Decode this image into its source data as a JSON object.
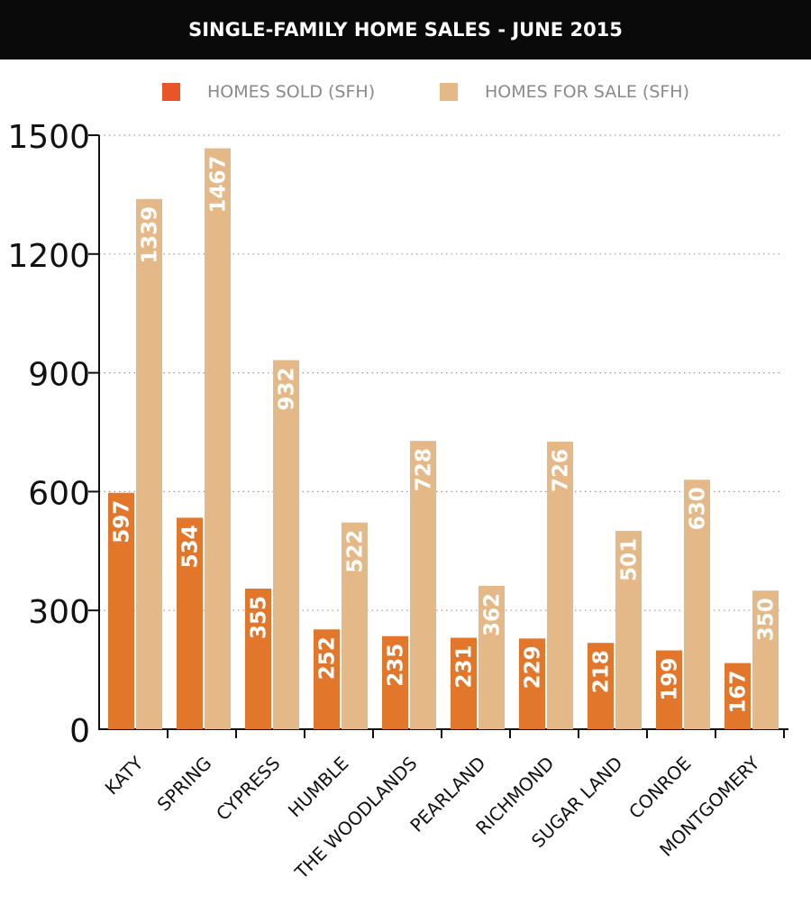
{
  "title": "SINGLE-FAMILY HOME SALES - JUNE 2015",
  "colors": {
    "sold": "#e2762a",
    "sold_legend": "#e8552b",
    "for_sale": "#e5b887",
    "title_bg": "#0a0a0a",
    "bar_label": "#ffffff"
  },
  "chart_data": {
    "type": "bar",
    "title": "SINGLE-FAMILY HOME SALES - JUNE 2015",
    "categories": [
      "KATY",
      "SPRING",
      "CYPRESS",
      "HUMBLE",
      "THE WOODLANDS",
      "PEARLAND",
      "RICHMOND",
      "SUGAR LAND",
      "CONROE",
      "MONTGOMERY"
    ],
    "series": [
      {
        "name": "HOMES SOLD (SFH)",
        "values": [
          597,
          534,
          355,
          252,
          235,
          231,
          229,
          218,
          199,
          167
        ]
      },
      {
        "name": "HOMES FOR SALE (SFH)",
        "values": [
          1339,
          1467,
          932,
          522,
          728,
          362,
          726,
          501,
          630,
          350
        ]
      }
    ],
    "yticks": [
      0,
      300,
      600,
      900,
      1200,
      1500
    ],
    "ylim": [
      0,
      1500
    ],
    "grid": "dotted horizontal",
    "legend_position": "top",
    "data_labels": "inside bars, rotated vertical"
  }
}
